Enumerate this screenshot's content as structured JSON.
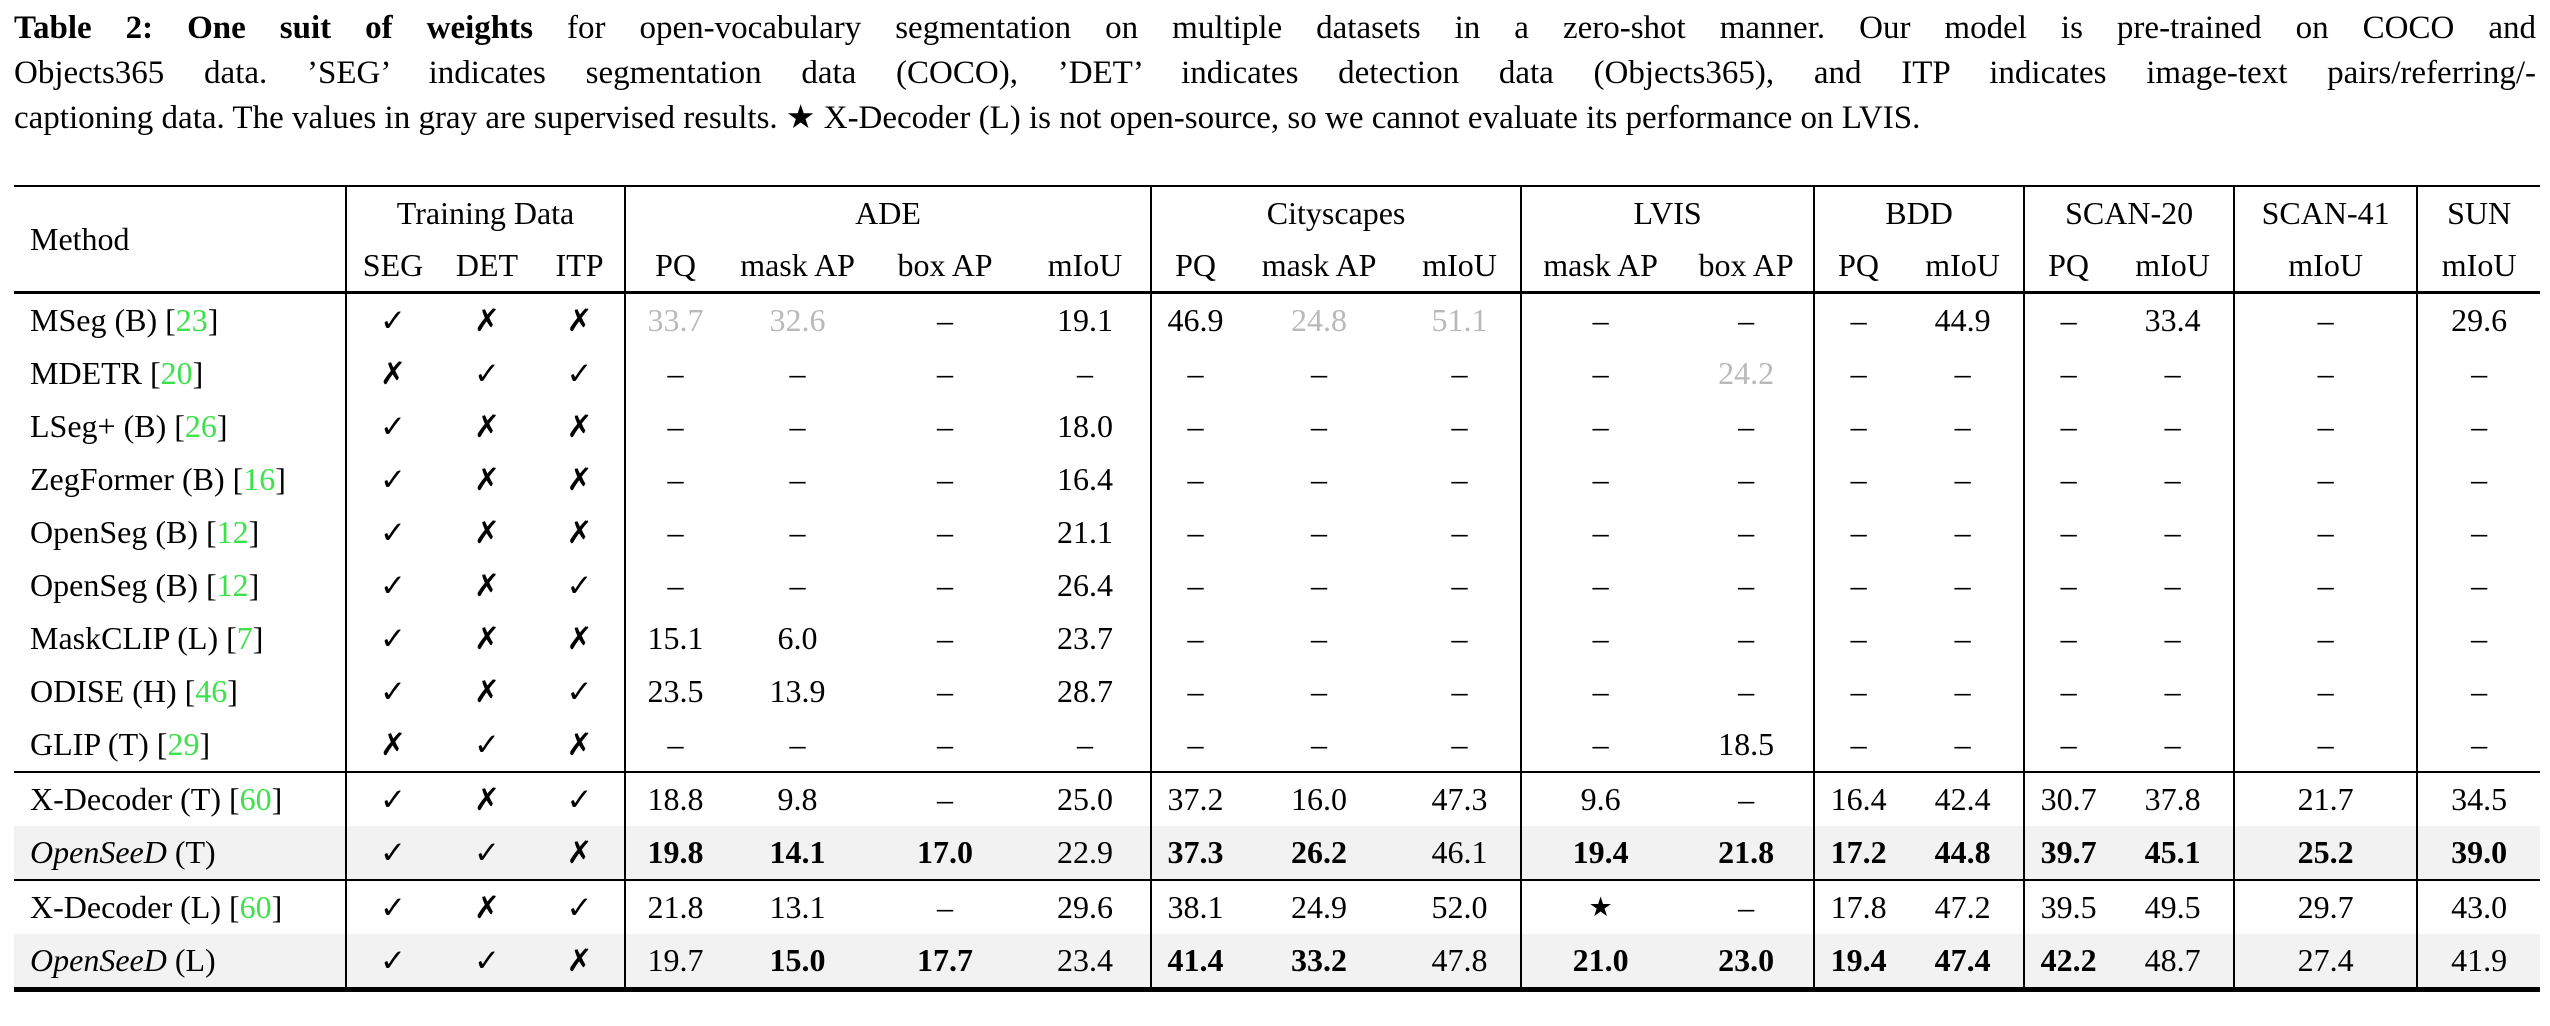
{
  "caption": {
    "line1_bold": "Table 2:  One suit of weights",
    "line1_rest": " for open-vocabulary segmentation on multiple datasets in a zero-shot manner.  Our model is pre-trained on COCO and",
    "line2": "Objects365 data. ’SEG’ indicates segmentation data (COCO), ’DET’ indicates detection data (Objects365), and ITP indicates image-text pairs/referring/-",
    "line3": "captioning data. The values in gray are supervised results. ★ X-Decoder (L) is not open-source, so we cannot evaluate its performance on LVIS."
  },
  "colors": {
    "ref_green": "#3ce14b",
    "gray_value": "#b9b9b9",
    "row_shade": "#f2f2f2"
  },
  "table": {
    "glyphs": {
      "check": "✓",
      "cross": "✗",
      "lbrack": " [",
      "rbrack": "]"
    },
    "header": {
      "method": "Method",
      "groups": [
        {
          "label": "Training Data",
          "cols": [
            "SEG",
            "DET",
            "ITP"
          ]
        },
        {
          "label": "ADE",
          "cols": [
            "PQ",
            "mask AP",
            "box AP",
            "mIoU"
          ]
        },
        {
          "label": "Cityscapes",
          "cols": [
            "PQ",
            "mask AP",
            "mIoU"
          ]
        },
        {
          "label": "LVIS",
          "cols": [
            "mask AP",
            "box AP"
          ]
        },
        {
          "label": "BDD",
          "cols": [
            "PQ",
            "mIoU"
          ]
        },
        {
          "label": "SCAN-20",
          "cols": [
            "PQ",
            "mIoU"
          ]
        },
        {
          "label": "SCAN-41",
          "cols": [
            "mIoU"
          ]
        },
        {
          "label": "SUN",
          "cols": [
            "mIoU"
          ]
        }
      ]
    },
    "rows": [
      {
        "method": {
          "italic": "",
          "text": "MSeg (B)",
          "ref": "23"
        },
        "seg": "check",
        "det": "cross",
        "itp": "cross",
        "cells": [
          {
            "v": "33.7",
            "g": true
          },
          {
            "v": "32.6",
            "g": true
          },
          {
            "v": "–"
          },
          {
            "v": "19.1"
          },
          {
            "v": "46.9"
          },
          {
            "v": "24.8",
            "g": true
          },
          {
            "v": "51.1",
            "g": true
          },
          {
            "v": "–"
          },
          {
            "v": "–"
          },
          {
            "v": "–"
          },
          {
            "v": "44.9"
          },
          {
            "v": "–"
          },
          {
            "v": "33.4"
          },
          {
            "v": "–"
          },
          {
            "v": "29.6"
          }
        ]
      },
      {
        "method": {
          "italic": "",
          "text": "MDETR",
          "ref": "20"
        },
        "seg": "cross",
        "det": "check",
        "itp": "check",
        "cells": [
          {
            "v": "–"
          },
          {
            "v": "–"
          },
          {
            "v": "–"
          },
          {
            "v": "–"
          },
          {
            "v": "–"
          },
          {
            "v": "–"
          },
          {
            "v": "–"
          },
          {
            "v": "–"
          },
          {
            "v": "24.2",
            "g": true
          },
          {
            "v": "–"
          },
          {
            "v": "–"
          },
          {
            "v": "–"
          },
          {
            "v": "–"
          },
          {
            "v": "–"
          },
          {
            "v": "–"
          }
        ]
      },
      {
        "method": {
          "italic": "",
          "text": "LSeg+ (B)",
          "ref": "26"
        },
        "seg": "check",
        "det": "cross",
        "itp": "cross",
        "cells": [
          {
            "v": "–"
          },
          {
            "v": "–"
          },
          {
            "v": "–"
          },
          {
            "v": "18.0"
          },
          {
            "v": "–"
          },
          {
            "v": "–"
          },
          {
            "v": "–"
          },
          {
            "v": "–"
          },
          {
            "v": "–"
          },
          {
            "v": "–"
          },
          {
            "v": "–"
          },
          {
            "v": "–"
          },
          {
            "v": "–"
          },
          {
            "v": "–"
          },
          {
            "v": "–"
          }
        ]
      },
      {
        "method": {
          "italic": "",
          "text": "ZegFormer (B)",
          "ref": "16"
        },
        "seg": "check",
        "det": "cross",
        "itp": "cross",
        "cells": [
          {
            "v": "–"
          },
          {
            "v": "–"
          },
          {
            "v": "–"
          },
          {
            "v": "16.4"
          },
          {
            "v": "–"
          },
          {
            "v": "–"
          },
          {
            "v": "–"
          },
          {
            "v": "–"
          },
          {
            "v": "–"
          },
          {
            "v": "–"
          },
          {
            "v": "–"
          },
          {
            "v": "–"
          },
          {
            "v": "–"
          },
          {
            "v": "–"
          },
          {
            "v": "–"
          }
        ]
      },
      {
        "method": {
          "italic": "",
          "text": "OpenSeg (B)",
          "ref": "12"
        },
        "seg": "check",
        "det": "cross",
        "itp": "cross",
        "cells": [
          {
            "v": "–"
          },
          {
            "v": "–"
          },
          {
            "v": "–"
          },
          {
            "v": "21.1"
          },
          {
            "v": "–"
          },
          {
            "v": "–"
          },
          {
            "v": "–"
          },
          {
            "v": "–"
          },
          {
            "v": "–"
          },
          {
            "v": "–"
          },
          {
            "v": "–"
          },
          {
            "v": "–"
          },
          {
            "v": "–"
          },
          {
            "v": "–"
          },
          {
            "v": "–"
          }
        ]
      },
      {
        "method": {
          "italic": "",
          "text": "OpenSeg (B)",
          "ref": "12"
        },
        "seg": "check",
        "det": "cross",
        "itp": "check",
        "cells": [
          {
            "v": "–"
          },
          {
            "v": "–"
          },
          {
            "v": "–"
          },
          {
            "v": "26.4"
          },
          {
            "v": "–"
          },
          {
            "v": "–"
          },
          {
            "v": "–"
          },
          {
            "v": "–"
          },
          {
            "v": "–"
          },
          {
            "v": "–"
          },
          {
            "v": "–"
          },
          {
            "v": "–"
          },
          {
            "v": "–"
          },
          {
            "v": "–"
          },
          {
            "v": "–"
          }
        ]
      },
      {
        "method": {
          "italic": "",
          "text": "MaskCLIP (L)",
          "ref": "7"
        },
        "seg": "check",
        "det": "cross",
        "itp": "cross",
        "cells": [
          {
            "v": "15.1"
          },
          {
            "v": "6.0"
          },
          {
            "v": "–"
          },
          {
            "v": "23.7"
          },
          {
            "v": "–"
          },
          {
            "v": "–"
          },
          {
            "v": "–"
          },
          {
            "v": "–"
          },
          {
            "v": "–"
          },
          {
            "v": "–"
          },
          {
            "v": "–"
          },
          {
            "v": "–"
          },
          {
            "v": "–"
          },
          {
            "v": "–"
          },
          {
            "v": "–"
          }
        ]
      },
      {
        "method": {
          "italic": "",
          "text": "ODISE (H)",
          "ref": "46"
        },
        "seg": "check",
        "det": "cross",
        "itp": "check",
        "cells": [
          {
            "v": "23.5"
          },
          {
            "v": "13.9"
          },
          {
            "v": "–"
          },
          {
            "v": "28.7"
          },
          {
            "v": "–"
          },
          {
            "v": "–"
          },
          {
            "v": "–"
          },
          {
            "v": "–"
          },
          {
            "v": "–"
          },
          {
            "v": "–"
          },
          {
            "v": "–"
          },
          {
            "v": "–"
          },
          {
            "v": "–"
          },
          {
            "v": "–"
          },
          {
            "v": "–"
          }
        ]
      },
      {
        "method": {
          "italic": "",
          "text": "GLIP (T)",
          "ref": "29"
        },
        "seg": "cross",
        "det": "check",
        "itp": "cross",
        "section_end": true,
        "cells": [
          {
            "v": "–"
          },
          {
            "v": "–"
          },
          {
            "v": "–"
          },
          {
            "v": "–"
          },
          {
            "v": "–"
          },
          {
            "v": "–"
          },
          {
            "v": "–"
          },
          {
            "v": "–"
          },
          {
            "v": "18.5"
          },
          {
            "v": "–"
          },
          {
            "v": "–"
          },
          {
            "v": "–"
          },
          {
            "v": "–"
          },
          {
            "v": "–"
          },
          {
            "v": "–"
          }
        ]
      },
      {
        "method": {
          "italic": "",
          "text": "X-Decoder (T)",
          "ref": "60"
        },
        "seg": "check",
        "det": "cross",
        "itp": "check",
        "cells": [
          {
            "v": "18.8"
          },
          {
            "v": "9.8"
          },
          {
            "v": "–"
          },
          {
            "v": "25.0"
          },
          {
            "v": "37.2"
          },
          {
            "v": "16.0"
          },
          {
            "v": "47.3"
          },
          {
            "v": "9.6"
          },
          {
            "v": "–"
          },
          {
            "v": "16.4"
          },
          {
            "v": "42.4"
          },
          {
            "v": "30.7"
          },
          {
            "v": "37.8"
          },
          {
            "v": "21.7"
          },
          {
            "v": "34.5"
          }
        ]
      },
      {
        "method": {
          "italic": "OpenSeeD",
          "text": " (T)",
          "ref": ""
        },
        "seg": "check",
        "det": "check",
        "itp": "cross",
        "shaded": true,
        "section_end": true,
        "cells": [
          {
            "v": "19.8",
            "b": true
          },
          {
            "v": "14.1",
            "b": true
          },
          {
            "v": "17.0",
            "b": true
          },
          {
            "v": "22.9"
          },
          {
            "v": "37.3",
            "b": true
          },
          {
            "v": "26.2",
            "b": true
          },
          {
            "v": "46.1"
          },
          {
            "v": "19.4",
            "b": true
          },
          {
            "v": "21.8",
            "b": true
          },
          {
            "v": "17.2",
            "b": true
          },
          {
            "v": "44.8",
            "b": true
          },
          {
            "v": "39.7",
            "b": true
          },
          {
            "v": "45.1",
            "b": true
          },
          {
            "v": "25.2",
            "b": true
          },
          {
            "v": "39.0",
            "b": true
          }
        ]
      },
      {
        "method": {
          "italic": "",
          "text": "X-Decoder (L)",
          "ref": "60"
        },
        "seg": "check",
        "det": "cross",
        "itp": "check",
        "cells": [
          {
            "v": "21.8"
          },
          {
            "v": "13.1"
          },
          {
            "v": "–"
          },
          {
            "v": "29.6"
          },
          {
            "v": "38.1"
          },
          {
            "v": "24.9"
          },
          {
            "v": "52.0"
          },
          {
            "v": "★",
            "star": true
          },
          {
            "v": "–"
          },
          {
            "v": "17.8"
          },
          {
            "v": "47.2"
          },
          {
            "v": "39.5"
          },
          {
            "v": "49.5"
          },
          {
            "v": "29.7"
          },
          {
            "v": "43.0"
          }
        ]
      },
      {
        "method": {
          "italic": "OpenSeeD",
          "text": " (L)",
          "ref": ""
        },
        "seg": "check",
        "det": "check",
        "itp": "cross",
        "shaded": true,
        "cells": [
          {
            "v": "19.7"
          },
          {
            "v": "15.0",
            "b": true
          },
          {
            "v": "17.7",
            "b": true
          },
          {
            "v": "23.4"
          },
          {
            "v": "41.4",
            "b": true
          },
          {
            "v": "33.2",
            "b": true
          },
          {
            "v": "47.8"
          },
          {
            "v": "21.0",
            "b": true
          },
          {
            "v": "23.0",
            "b": true
          },
          {
            "v": "19.4",
            "b": true
          },
          {
            "v": "47.4",
            "b": true
          },
          {
            "v": "42.2",
            "b": true
          },
          {
            "v": "48.7"
          },
          {
            "v": "27.4"
          },
          {
            "v": "41.9"
          }
        ]
      }
    ]
  }
}
